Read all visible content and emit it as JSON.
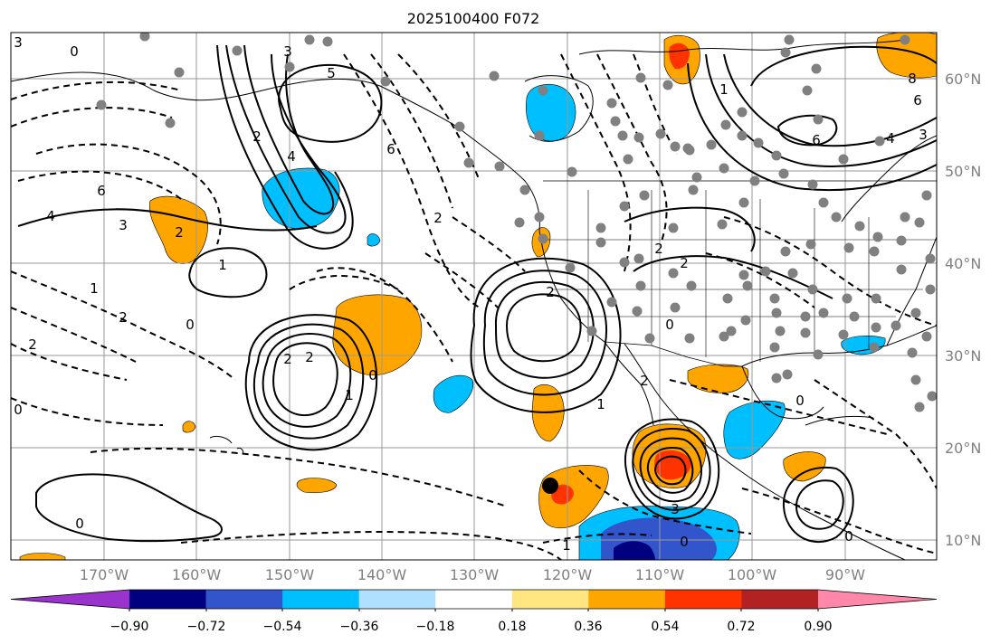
{
  "title": "2025100400 F072",
  "map": {
    "lat_ticks": [
      "60°N",
      "50°N",
      "40°N",
      "30°N",
      "20°N",
      "10°N"
    ],
    "lon_ticks": [
      "170°W",
      "160°W",
      "150°W",
      "140°W",
      "130°W",
      "120°W",
      "110°W",
      "100°W",
      "90°W"
    ],
    "contour_labels": [
      "3",
      "0",
      "3",
      "5",
      "2",
      "4",
      "6",
      "3",
      "2",
      "6",
      "4",
      "2",
      "1",
      "1",
      "2",
      "0",
      "2",
      "2",
      "2",
      "1",
      "0",
      "0",
      "2",
      "2",
      "2",
      "2",
      "1",
      "0",
      "3",
      "0",
      "0",
      "0",
      "1",
      "8",
      "6",
      "4",
      "3",
      "1",
      "6",
      "0"
    ],
    "marker_color": "#000000",
    "station_dot_color": "#808080"
  },
  "colorbar": {
    "tick_labels": [
      "−0.90",
      "−0.72",
      "−0.54",
      "−0.36",
      "−0.18",
      "0.18",
      "0.36",
      "0.54",
      "0.72",
      "0.90"
    ],
    "colors": [
      "#9933cc",
      "#000080",
      "#3355cc",
      "#00bfff",
      "#b0e0ff",
      "#ffffff",
      "#ffe680",
      "#ffa500",
      "#ff3300",
      "#b22222",
      "#ff88aa"
    ]
  }
}
